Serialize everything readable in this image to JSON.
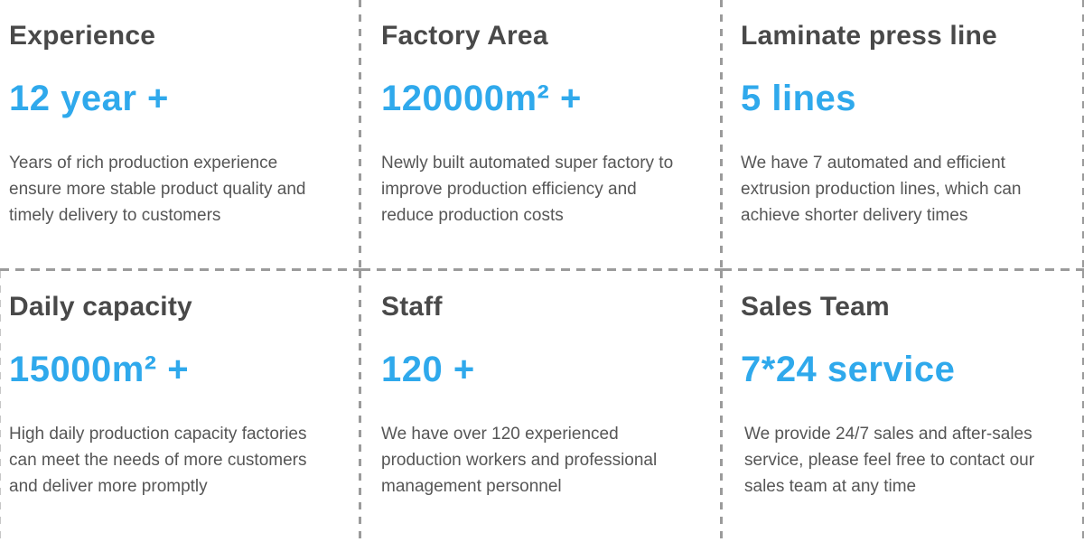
{
  "colors": {
    "accent": "#2fa9ec",
    "title_text": "#494949",
    "body_text": "#565656",
    "divider": "#9b9b9b",
    "background": "#ffffff"
  },
  "cards": [
    {
      "title": "Experience",
      "value": "12 year +",
      "description": "Years of rich production experience ensure more stable product quality and timely delivery to customers"
    },
    {
      "title": "Factory Area",
      "value": "120000m² +",
      "description": "Newly built automated super factory to improve production efficiency and reduce production costs"
    },
    {
      "title": "Laminate press line",
      "value": "5 lines",
      "description": "We have 7 automated and efficient extrusion production lines, which can achieve shorter delivery times"
    },
    {
      "title": "Daily capacity",
      "value": "15000m² +",
      "description": "High daily production capacity factories can meet the needs of more customers and deliver more promptly"
    },
    {
      "title": "Staff",
      "value": "120 +",
      "description": "We have over 120 experienced production workers and professional management personnel"
    },
    {
      "title": "Sales Team",
      "value": "7*24 service",
      "description": "We provide 24/7 sales and after-sales service, please feel free to contact our sales team at any time"
    }
  ]
}
